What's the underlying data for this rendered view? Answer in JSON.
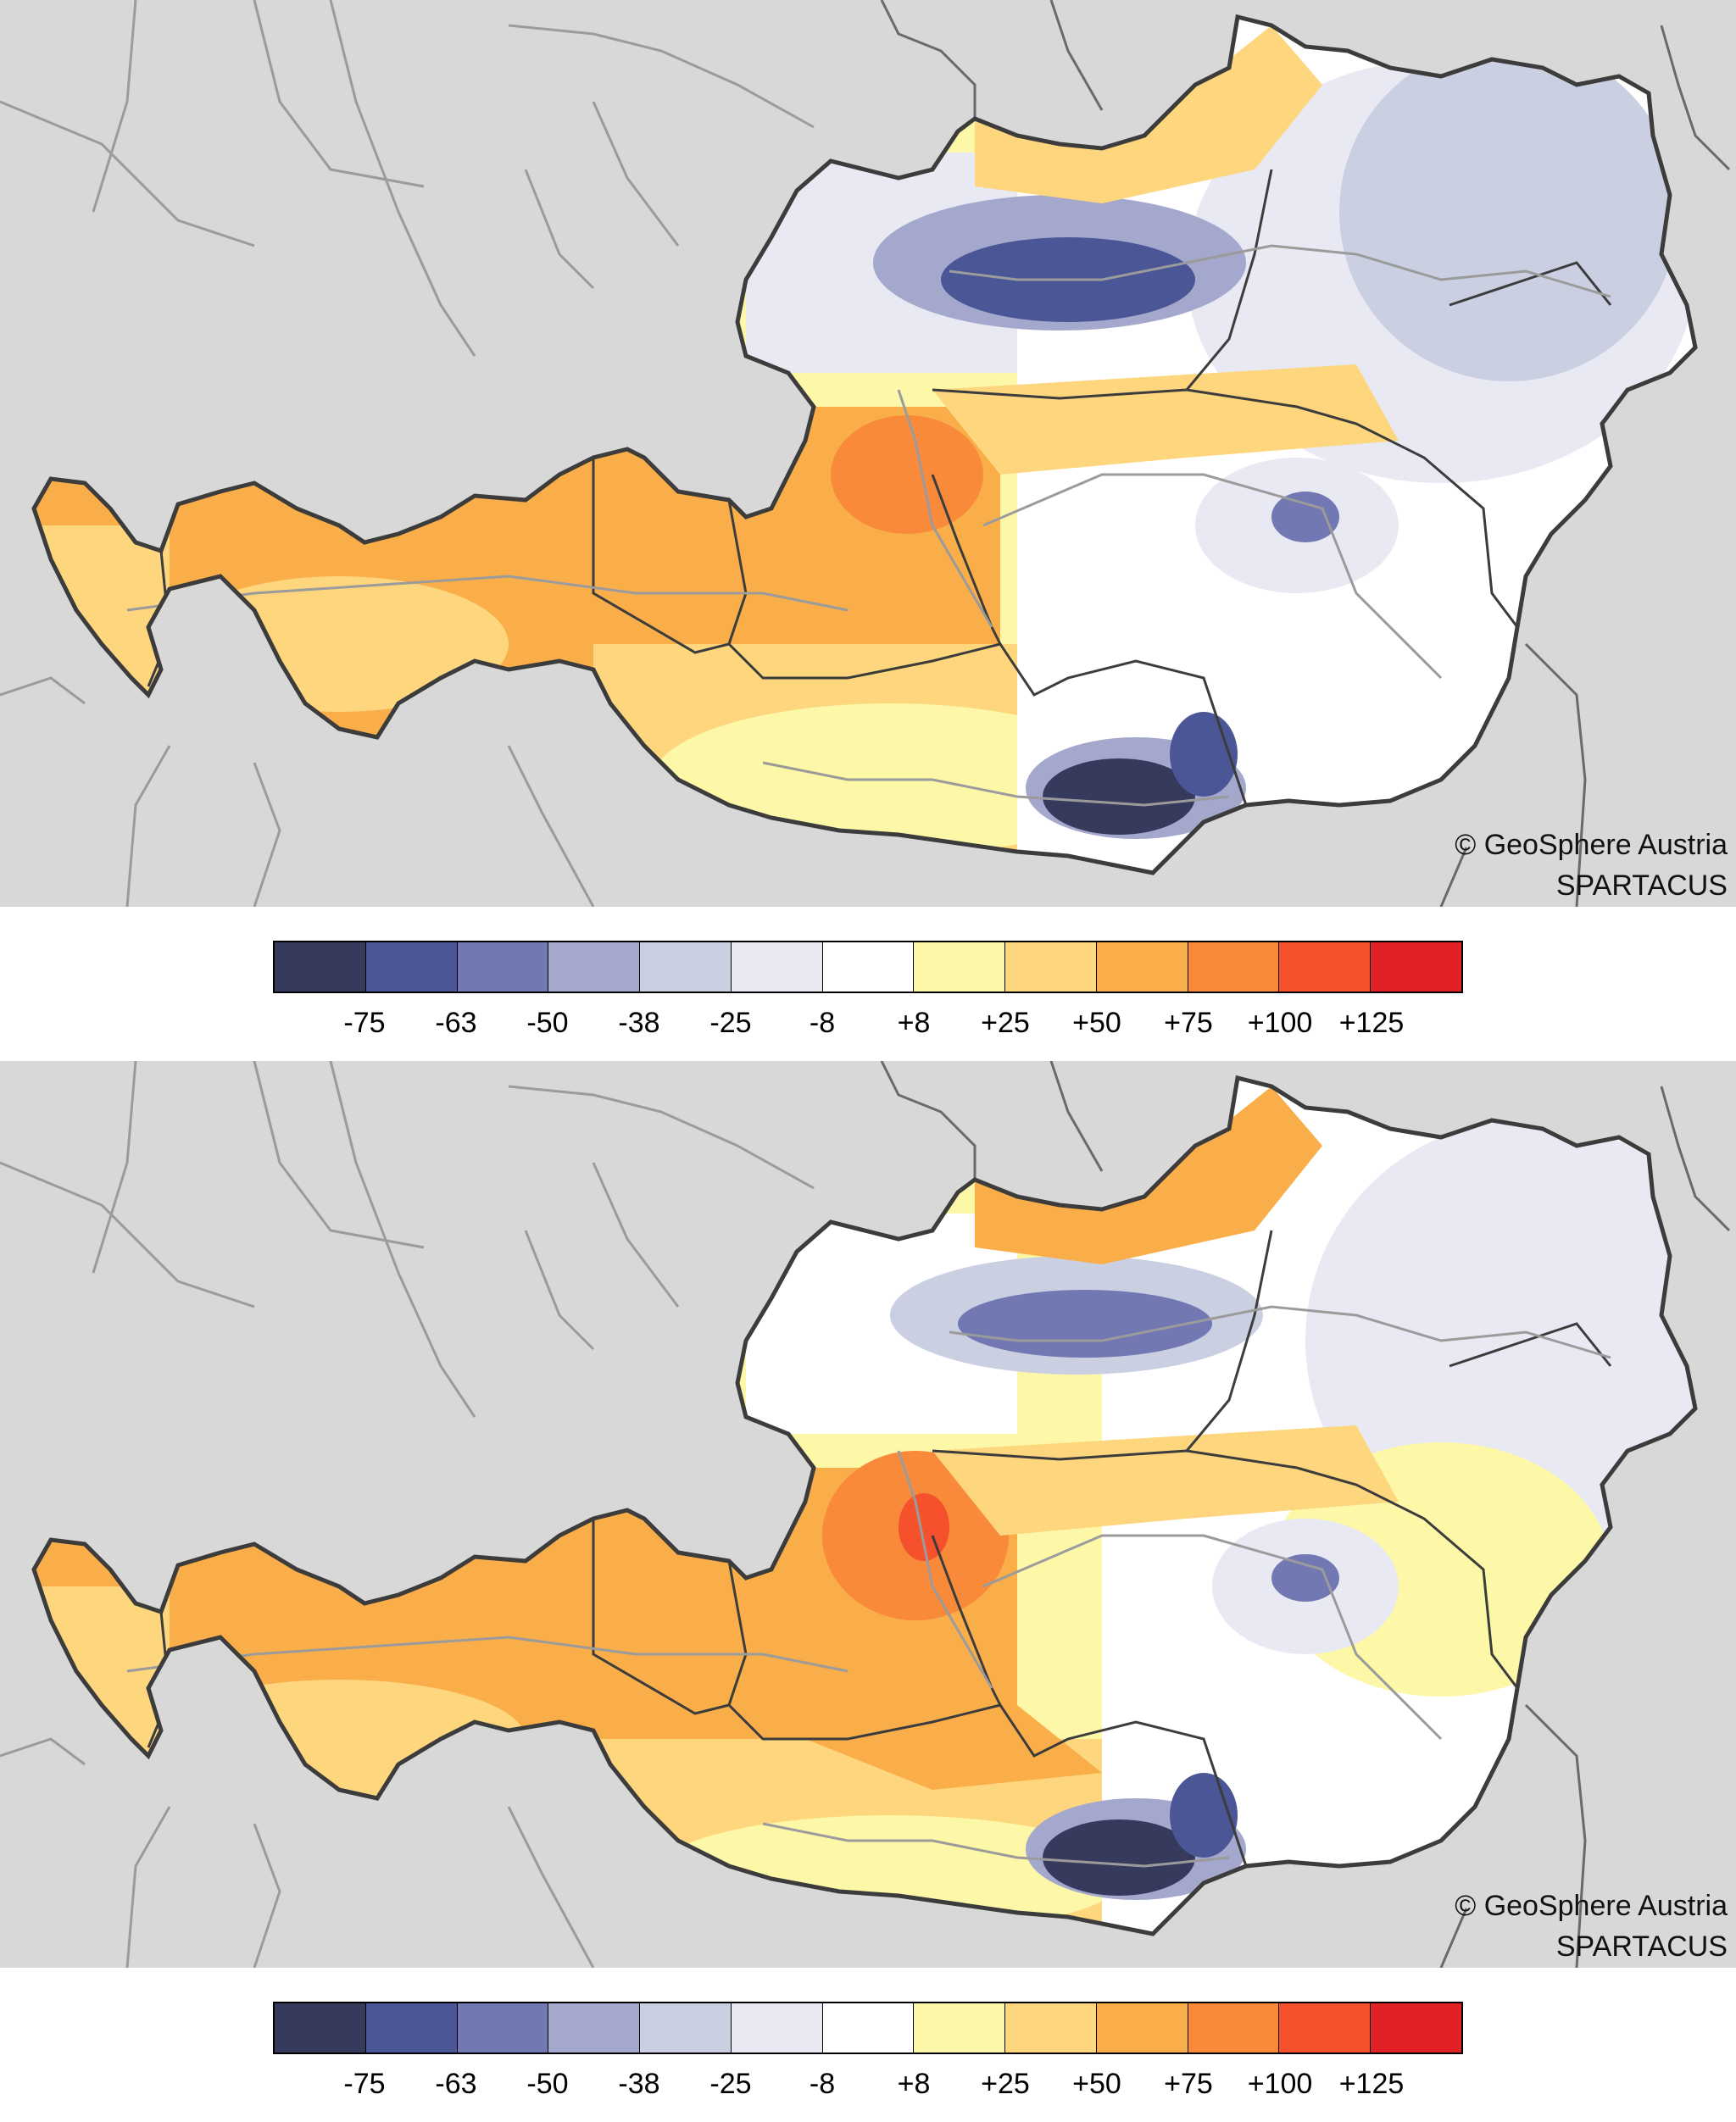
{
  "panels": [
    {
      "credit_line1": "© GeoSphere Austria",
      "credit_line2": "SPARTACUS"
    },
    {
      "credit_line1": "© GeoSphere Austria",
      "credit_line2": "SPARTACUS"
    }
  ],
  "legend": {
    "colors": [
      "#363b5e",
      "#4a5696",
      "#7178b2",
      "#a3a8cc",
      "#cbcfe2",
      "#e8e9f3",
      "#ffffff",
      "#fdf7a8",
      "#fdd67d",
      "#faae49",
      "#f88a3a",
      "#f4512c",
      "#e02226"
    ],
    "labels": [
      "-75",
      "-63",
      "-50",
      "-38",
      "-25",
      "-8",
      "+8",
      "+25",
      "+50",
      "+75",
      "+100",
      "+125"
    ]
  },
  "map_colors": {
    "background": "#d8d8d8",
    "border": "#3c3c3c",
    "rivers": "#9b9b9b"
  }
}
